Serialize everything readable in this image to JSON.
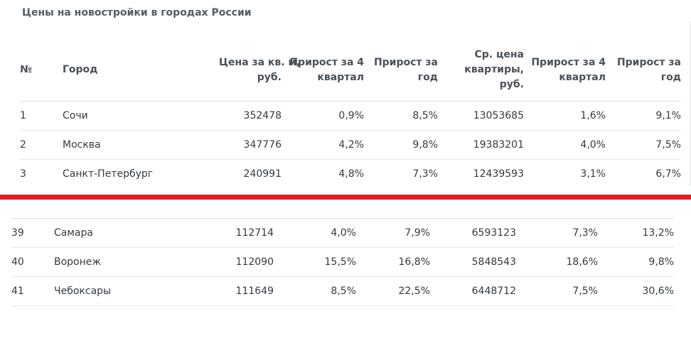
{
  "title": "Цены на новостройки в городах России",
  "header": {
    "num": "№",
    "city": "Город",
    "price_sqm_1": "Цена за кв. м,",
    "price_sqm_2": "руб.",
    "growth_q_1a": "Прирост за 4",
    "growth_q_1b": "квартал",
    "growth_y_1a": "Прирост за",
    "growth_y_1b": "год",
    "avg_1": "Ср. цена",
    "avg_2": "квартиры,",
    "avg_3": "руб.",
    "growth_q_2a": "Прирост за 4",
    "growth_q_2b": "квартал",
    "growth_y_2a": "Прирост за",
    "growth_y_2b": "год"
  },
  "rows_top": [
    {
      "num": "1",
      "city": "Сочи",
      "price_sqm": "352478",
      "growth_q": "0,9%",
      "growth_y": "8,5%",
      "avg_price": "13053685",
      "growth_q2": "1,6%",
      "growth_y2": "9,1%"
    },
    {
      "num": "2",
      "city": "Москва",
      "price_sqm": "347776",
      "growth_q": "4,2%",
      "growth_y": "9,8%",
      "avg_price": "19383201",
      "growth_q2": "4,0%",
      "growth_y2": "7,5%"
    },
    {
      "num": "3",
      "city": "Санкт-Петербург",
      "price_sqm": "240991",
      "growth_q": "4,8%",
      "growth_y": "7,3%",
      "avg_price": "12439593",
      "growth_q2": "3,1%",
      "growth_y2": "6,7%"
    }
  ],
  "rows_bottom": [
    {
      "num": "39",
      "city": "Самара",
      "price_sqm": "112714",
      "growth_q": "4,0%",
      "growth_y": "7,9%",
      "avg_price": "6593123",
      "growth_q2": "7,3%",
      "growth_y2": "13,2%"
    },
    {
      "num": "40",
      "city": "Воронеж",
      "price_sqm": "112090",
      "growth_q": "15,5%",
      "growth_y": "16,8%",
      "avg_price": "5848543",
      "growth_q2": "18,6%",
      "growth_y2": "9,8%"
    },
    {
      "num": "41",
      "city": "Чебоксары",
      "price_sqm": "111649",
      "growth_q": "8,5%",
      "growth_y": "22,5%",
      "avg_price": "6448712",
      "growth_q2": "7,5%",
      "growth_y2": "30,6%"
    }
  ],
  "colors": {
    "divider": "#e41e26",
    "text": "#333a40",
    "header_text": "#4a5158",
    "rule": "#dcdfe2"
  }
}
